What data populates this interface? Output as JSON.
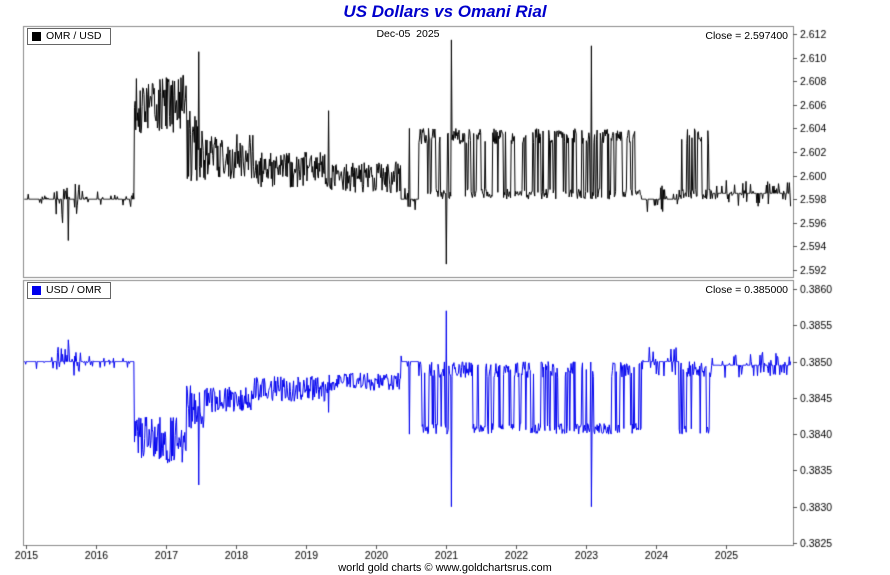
{
  "header": {
    "title": "US Dollars vs Omani Rial",
    "title_color": "#0000cc"
  },
  "annotation": {
    "date_label": "Dec-05  2025"
  },
  "footer": {
    "text": "world gold charts © www.goldchartsrus.com"
  },
  "x_axis": {
    "xlim": [
      2014.95,
      2025.95
    ],
    "ticks": [
      2015,
      2016,
      2017,
      2018,
      2019,
      2020,
      2021,
      2022,
      2023,
      2024,
      2025
    ]
  },
  "chart_data": [
    {
      "type": "line",
      "pair": "OMR / USD",
      "legend": "OMR / USD",
      "close_label": "Close = 2.597400",
      "close": 2.5974,
      "color": "#000000",
      "ylim": [
        2.592,
        2.612
      ],
      "yticks": [
        2.612,
        2.61,
        2.608,
        2.606,
        2.604,
        2.602,
        2.6,
        2.598,
        2.596,
        2.594,
        2.592
      ],
      "y_decimals": 3,
      "legend_position": "top-left",
      "grid": false,
      "segments": [
        {
          "from": 2014.97,
          "to": 2015.42,
          "mode": "flat",
          "v": 2.598,
          "amp": 0.0008,
          "p": 0.2
        },
        {
          "from": 2015.42,
          "to": 2015.78,
          "mode": "flat",
          "v": 2.598,
          "amp": 0.0013,
          "p": 0.4
        },
        {
          "from": 2015.78,
          "to": 2016.54,
          "mode": "flat",
          "v": 2.598,
          "amp": 0.0007,
          "p": 0.15
        },
        {
          "from": 2016.54,
          "to": 2017.28,
          "mode": "noise",
          "lo": 2.6035,
          "hi": 2.6085
        },
        {
          "from": 2017.28,
          "to": 2017.56,
          "mode": "noise",
          "lo": 2.5995,
          "hi": 2.6055
        },
        {
          "from": 2017.56,
          "to": 2018.25,
          "mode": "noise",
          "lo": 2.5995,
          "hi": 2.6035
        },
        {
          "from": 2018.25,
          "to": 2019.3,
          "mode": "noise",
          "lo": 2.599,
          "hi": 2.602
        },
        {
          "from": 2019.3,
          "to": 2020.35,
          "mode": "noise",
          "lo": 2.5985,
          "hi": 2.6012
        },
        {
          "from": 2020.35,
          "to": 2020.6,
          "mode": "flat",
          "v": 2.598,
          "amp": 0.001,
          "p": 0.25
        },
        {
          "from": 2020.6,
          "to": 2021.95,
          "mode": "band",
          "lo": 2.598,
          "hi": 2.604,
          "pHi": 0.5
        },
        {
          "from": 2021.95,
          "to": 2022.25,
          "mode": "band",
          "lo": 2.598,
          "hi": 2.604,
          "pHi": 0.3
        },
        {
          "from": 2022.25,
          "to": 2023.78,
          "mode": "band",
          "lo": 2.598,
          "hi": 2.604,
          "pHi": 0.5
        },
        {
          "from": 2023.78,
          "to": 2024.32,
          "mode": "flat",
          "v": 2.598,
          "amp": 0.0012,
          "p": 0.3
        },
        {
          "from": 2024.32,
          "to": 2024.78,
          "mode": "band",
          "lo": 2.598,
          "hi": 2.604,
          "pHi": 0.45
        },
        {
          "from": 2024.78,
          "to": 2025.92,
          "mode": "flat",
          "v": 2.5985,
          "amp": 0.0011,
          "p": 0.35
        }
      ],
      "spikes": [
        {
          "t": 2015.52,
          "v": 2.596
        },
        {
          "t": 2015.6,
          "v": 2.5945
        },
        {
          "t": 2017.46,
          "v": 2.6105
        },
        {
          "t": 2019.32,
          "v": 2.6055
        },
        {
          "t": 2020.47,
          "v": 2.604
        },
        {
          "t": 2021.0,
          "v": 2.5925
        },
        {
          "t": 2021.07,
          "v": 2.6115
        },
        {
          "t": 2023.07,
          "v": 2.611
        }
      ]
    },
    {
      "type": "line",
      "pair": "USD / OMR",
      "legend": "USD / OMR",
      "close_label": "Close = 0.385000",
      "close": 0.385,
      "color": "#0000ee",
      "ylim": [
        0.3825,
        0.386
      ],
      "yticks": [
        0.386,
        0.3855,
        0.385,
        0.3845,
        0.384,
        0.3835,
        0.383,
        0.3825
      ],
      "y_decimals": 4,
      "legend_position": "top-left",
      "grid": false,
      "segments": [
        {
          "from": 2014.97,
          "to": 2015.42,
          "mode": "flat",
          "v": 0.385,
          "amp": 0.00012,
          "p": 0.2
        },
        {
          "from": 2015.42,
          "to": 2015.78,
          "mode": "flat",
          "v": 0.385,
          "amp": 0.0002,
          "p": 0.4
        },
        {
          "from": 2015.78,
          "to": 2016.54,
          "mode": "flat",
          "v": 0.385,
          "amp": 0.0001,
          "p": 0.15
        },
        {
          "from": 2016.54,
          "to": 2017.28,
          "mode": "noise",
          "lo": 0.3836,
          "hi": 0.38425
        },
        {
          "from": 2017.28,
          "to": 2017.56,
          "mode": "noise",
          "lo": 0.38405,
          "hi": 0.3847
        },
        {
          "from": 2017.56,
          "to": 2018.25,
          "mode": "noise",
          "lo": 0.3843,
          "hi": 0.38465
        },
        {
          "from": 2018.25,
          "to": 2019.3,
          "mode": "noise",
          "lo": 0.38445,
          "hi": 0.3848
        },
        {
          "from": 2019.3,
          "to": 2020.35,
          "mode": "noise",
          "lo": 0.3846,
          "hi": 0.38485
        },
        {
          "from": 2020.35,
          "to": 2020.6,
          "mode": "flat",
          "v": 0.385,
          "amp": 0.00015,
          "p": 0.25
        },
        {
          "from": 2020.6,
          "to": 2021.95,
          "mode": "band",
          "lo": 0.384,
          "hi": 0.385,
          "pHi": 0.55
        },
        {
          "from": 2021.95,
          "to": 2022.25,
          "mode": "band",
          "lo": 0.384,
          "hi": 0.385,
          "pHi": 0.72
        },
        {
          "from": 2022.25,
          "to": 2023.78,
          "mode": "band",
          "lo": 0.384,
          "hi": 0.385,
          "pHi": 0.55
        },
        {
          "from": 2023.78,
          "to": 2024.32,
          "mode": "flat",
          "v": 0.385,
          "amp": 0.0002,
          "p": 0.3
        },
        {
          "from": 2024.32,
          "to": 2024.78,
          "mode": "band",
          "lo": 0.384,
          "hi": 0.385,
          "pHi": 0.6
        },
        {
          "from": 2024.78,
          "to": 2025.92,
          "mode": "flat",
          "v": 0.38495,
          "amp": 0.00018,
          "p": 0.35
        }
      ],
      "spikes": [
        {
          "t": 2015.52,
          "v": 0.3851
        },
        {
          "t": 2015.6,
          "v": 0.3853
        },
        {
          "t": 2017.46,
          "v": 0.3833
        },
        {
          "t": 2019.32,
          "v": 0.3843
        },
        {
          "t": 2020.47,
          "v": 0.384
        },
        {
          "t": 2021.0,
          "v": 0.3857
        },
        {
          "t": 2021.07,
          "v": 0.383
        },
        {
          "t": 2023.07,
          "v": 0.383
        }
      ]
    }
  ]
}
